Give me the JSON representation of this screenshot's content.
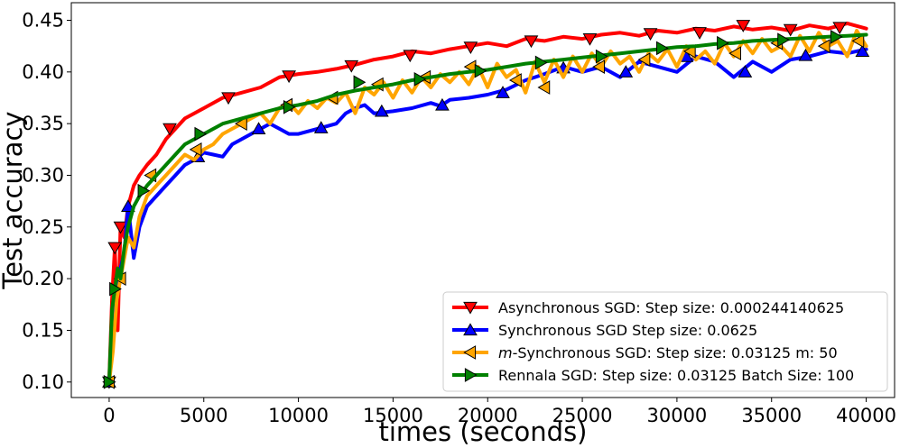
{
  "chart_data": {
    "type": "line",
    "xlabel": "times (seconds)",
    "ylabel": "Test accuracy",
    "xlim": [
      -2000,
      41500
    ],
    "ylim": [
      0.085,
      0.467
    ],
    "xticks": [
      0,
      5000,
      10000,
      15000,
      20000,
      25000,
      30000,
      35000,
      40000
    ],
    "xtick_labels": [
      "0",
      "5000",
      "10000",
      "15000",
      "20000",
      "25000",
      "30000",
      "35000",
      "40000"
    ],
    "yticks": [
      0.1,
      0.15,
      0.2,
      0.25,
      0.3,
      0.35,
      0.4,
      0.45
    ],
    "ytick_labels": [
      "0.10",
      "0.15",
      "0.20",
      "0.25",
      "0.30",
      "0.35",
      "0.40",
      "0.45"
    ],
    "legend_position": "bottom-right",
    "series": [
      {
        "name": "Asynchronous SGD: Step size: 0.000244140625",
        "legend_parts": [
          {
            "text": "Asynchronous SGD: Step size: 0.000244140625",
            "italic": false
          }
        ],
        "color": "#ff0000",
        "marker": "triangle-down",
        "x": [
          0,
          150,
          300,
          450,
          600,
          800,
          1000,
          1300,
          1600,
          2000,
          2500,
          3000,
          3500,
          4000,
          5000,
          6000,
          7000,
          8000,
          9000,
          10000,
          11000,
          12000,
          13000,
          14000,
          15000,
          16000,
          17000,
          18000,
          19000,
          20000,
          21000,
          22000,
          23000,
          24000,
          25000,
          26000,
          27000,
          28000,
          29000,
          30000,
          31000,
          32000,
          33000,
          34000,
          35000,
          36000,
          37000,
          38000,
          39000,
          40000
        ],
        "y": [
          0.1,
          0.18,
          0.23,
          0.15,
          0.25,
          0.24,
          0.27,
          0.29,
          0.3,
          0.31,
          0.32,
          0.335,
          0.345,
          0.355,
          0.365,
          0.375,
          0.38,
          0.385,
          0.395,
          0.398,
          0.4,
          0.403,
          0.407,
          0.412,
          0.415,
          0.42,
          0.418,
          0.422,
          0.425,
          0.428,
          0.425,
          0.432,
          0.43,
          0.434,
          0.432,
          0.436,
          0.438,
          0.435,
          0.44,
          0.438,
          0.442,
          0.44,
          0.444,
          0.441,
          0.443,
          0.44,
          0.445,
          0.442,
          0.447,
          0.442
        ],
        "marker_x": [
          0,
          300,
          600,
          3200,
          6300,
          9500,
          12800,
          15900,
          19100,
          22300,
          25400,
          28600,
          31200,
          33500,
          36000,
          38600
        ],
        "marker_y": [
          0.1,
          0.23,
          0.25,
          0.345,
          0.375,
          0.396,
          0.406,
          0.416,
          0.424,
          0.43,
          0.432,
          0.437,
          0.438,
          0.445,
          0.441,
          0.443
        ]
      },
      {
        "name": "Synchronous SGD Step size: 0.0625",
        "legend_parts": [
          {
            "text": "Synchronous SGD Step size: 0.0625",
            "italic": false
          }
        ],
        "color": "#0000ff",
        "marker": "triangle-up",
        "x": [
          0,
          200,
          400,
          600,
          800,
          1000,
          1300,
          1600,
          2000,
          2500,
          3000,
          3500,
          4000,
          4500,
          5000,
          5500,
          6000,
          6500,
          7000,
          7500,
          8000,
          8500,
          9000,
          9500,
          10000,
          11000,
          12000,
          12500,
          13000,
          13500,
          14000,
          15000,
          16000,
          17000,
          17500,
          18000,
          19000,
          20000,
          21000,
          22000,
          22500,
          23000,
          24000,
          25000,
          26000,
          27000,
          28000,
          29000,
          30000,
          31000,
          32000,
          33000,
          34000,
          35000,
          36000,
          37000,
          38000,
          39000,
          40000
        ],
        "y": [
          0.1,
          0.15,
          0.2,
          0.21,
          0.225,
          0.27,
          0.22,
          0.25,
          0.27,
          0.28,
          0.29,
          0.3,
          0.31,
          0.315,
          0.322,
          0.32,
          0.318,
          0.33,
          0.335,
          0.34,
          0.345,
          0.35,
          0.345,
          0.34,
          0.34,
          0.345,
          0.35,
          0.36,
          0.365,
          0.368,
          0.36,
          0.362,
          0.365,
          0.37,
          0.367,
          0.373,
          0.375,
          0.378,
          0.383,
          0.392,
          0.395,
          0.398,
          0.405,
          0.4,
          0.405,
          0.395,
          0.41,
          0.405,
          0.4,
          0.415,
          0.41,
          0.395,
          0.41,
          0.4,
          0.412,
          0.415,
          0.42,
          0.418,
          0.422
        ],
        "marker_x": [
          0,
          1000,
          4700,
          7900,
          11200,
          14400,
          17600,
          20800,
          24000,
          27300,
          30500,
          33600,
          36800,
          39800
        ],
        "marker_y": [
          0.1,
          0.27,
          0.318,
          0.345,
          0.346,
          0.362,
          0.368,
          0.38,
          0.404,
          0.4,
          0.415,
          0.4,
          0.416,
          0.42
        ]
      },
      {
        "name": "m-Synchronous  SGD: Step size: 0.03125 m: 50",
        "legend_parts": [
          {
            "text": "m",
            "italic": true
          },
          {
            "text": "-Synchronous  SGD: Step size: 0.03125 m: 50",
            "italic": false
          }
        ],
        "color": "#ffa500",
        "marker": "triangle-left",
        "x": [
          0,
          200,
          400,
          600,
          800,
          1000,
          1300,
          1600,
          2000,
          2500,
          3000,
          3500,
          4000,
          4500,
          5000,
          5500,
          6000,
          6500,
          7000,
          7500,
          8000,
          8500,
          9000,
          9500,
          10000,
          10500,
          11000,
          11500,
          12000,
          12500,
          13000,
          13500,
          14000,
          14500,
          15000,
          15500,
          16000,
          16500,
          17000,
          17500,
          18000,
          18500,
          19000,
          19500,
          20000,
          20500,
          21000,
          21500,
          22000,
          22500,
          23000,
          23500,
          24000,
          24500,
          25000,
          25500,
          26000,
          26500,
          27000,
          27500,
          28000,
          28500,
          29000,
          29500,
          30000,
          30500,
          31000,
          31500,
          32000,
          32500,
          33000,
          33500,
          34000,
          34500,
          35000,
          35500,
          36000,
          36500,
          37000,
          37500,
          38000,
          38500,
          39000,
          39500,
          40000
        ],
        "y": [
          0.1,
          0.13,
          0.18,
          0.2,
          0.22,
          0.24,
          0.23,
          0.26,
          0.28,
          0.29,
          0.3,
          0.31,
          0.32,
          0.315,
          0.325,
          0.33,
          0.34,
          0.345,
          0.35,
          0.355,
          0.36,
          0.35,
          0.365,
          0.37,
          0.36,
          0.372,
          0.365,
          0.375,
          0.37,
          0.38,
          0.36,
          0.385,
          0.378,
          0.39,
          0.375,
          0.392,
          0.38,
          0.395,
          0.385,
          0.398,
          0.39,
          0.4,
          0.388,
          0.405,
          0.385,
          0.408,
          0.395,
          0.402,
          0.38,
          0.41,
          0.39,
          0.412,
          0.395,
          0.415,
          0.4,
          0.418,
          0.405,
          0.42,
          0.408,
          0.415,
          0.4,
          0.418,
          0.41,
          0.422,
          0.405,
          0.425,
          0.412,
          0.42,
          0.408,
          0.428,
          0.415,
          0.43,
          0.418,
          0.432,
          0.42,
          0.425,
          0.415,
          0.435,
          0.42,
          0.438,
          0.425,
          0.43,
          0.415,
          0.44,
          0.425
        ],
        "marker_x": [
          0,
          600,
          2200,
          4600,
          7000,
          9400,
          11800,
          14200,
          16700,
          19100,
          21500,
          23000,
          25900,
          28300,
          30700,
          33100,
          35300,
          37800,
          39600
        ],
        "marker_y": [
          0.1,
          0.2,
          0.3,
          0.325,
          0.35,
          0.368,
          0.375,
          0.388,
          0.395,
          0.405,
          0.392,
          0.385,
          0.405,
          0.412,
          0.42,
          0.418,
          0.428,
          0.425,
          0.43
        ]
      },
      {
        "name": "Rennala SGD: Step size: 0.03125 Batch Size: 100",
        "legend_parts": [
          {
            "text": "Rennala SGD: Step size: 0.03125 Batch Size: 100",
            "italic": false
          }
        ],
        "color": "#008000",
        "marker": "triangle-right",
        "x": [
          0,
          150,
          300,
          450,
          600,
          800,
          1000,
          1300,
          1600,
          2000,
          2500,
          3000,
          3500,
          4000,
          5000,
          6000,
          7000,
          8000,
          9000,
          10000,
          11000,
          12000,
          13000,
          14000,
          15000,
          16000,
          17000,
          18000,
          19000,
          20000,
          21000,
          22000,
          23000,
          24000,
          25000,
          26000,
          27000,
          28000,
          29000,
          30000,
          31000,
          32000,
          33000,
          34000,
          35000,
          36000,
          37000,
          38000,
          39000,
          40000
        ],
        "y": [
          0.1,
          0.17,
          0.19,
          0.21,
          0.2,
          0.23,
          0.25,
          0.27,
          0.28,
          0.29,
          0.3,
          0.31,
          0.32,
          0.33,
          0.34,
          0.35,
          0.355,
          0.36,
          0.365,
          0.368,
          0.372,
          0.378,
          0.382,
          0.385,
          0.388,
          0.392,
          0.395,
          0.398,
          0.4,
          0.402,
          0.405,
          0.408,
          0.41,
          0.412,
          0.414,
          0.416,
          0.418,
          0.42,
          0.422,
          0.424,
          0.425,
          0.427,
          0.428,
          0.43,
          0.431,
          0.432,
          0.433,
          0.434,
          0.435,
          0.436
        ],
        "marker_x": [
          0,
          300,
          1800,
          4800,
          9500,
          13200,
          16400,
          19600,
          22800,
          26000,
          29200,
          32400,
          35600,
          38400
        ],
        "marker_y": [
          0.1,
          0.19,
          0.285,
          0.34,
          0.366,
          0.39,
          0.393,
          0.401,
          0.409,
          0.415,
          0.423,
          0.428,
          0.431,
          0.434
        ]
      }
    ]
  }
}
